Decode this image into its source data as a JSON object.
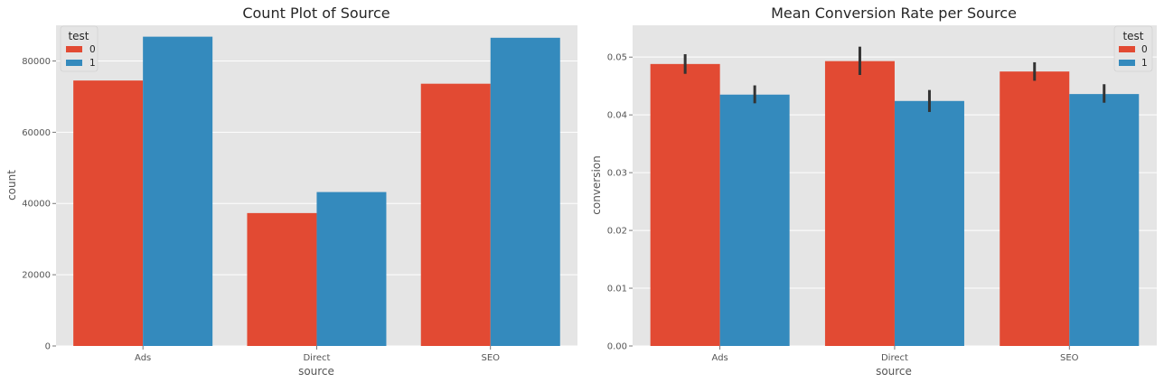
{
  "colors": {
    "series0": "#E24A33",
    "series1": "#348ABD",
    "panel_bg": "#E5E5E5",
    "grid": "#FFFFFF",
    "errbar": "#333333"
  },
  "chart_data": [
    {
      "type": "bar",
      "title": "Count Plot of Source",
      "xlabel": "source",
      "ylabel": "count",
      "categories": [
        "Ads",
        "Direct",
        "SEO"
      ],
      "ylim": [
        0,
        90000
      ],
      "yticks": [
        0,
        20000,
        40000,
        60000,
        80000
      ],
      "grid": true,
      "legend": {
        "title": "test",
        "placement": "top-left",
        "entries": [
          "0",
          "1"
        ]
      },
      "series": [
        {
          "name": "0",
          "values": [
            74500,
            37300,
            73600
          ]
        },
        {
          "name": "1",
          "values": [
            86800,
            43200,
            86500
          ]
        }
      ]
    },
    {
      "type": "bar",
      "title": "Mean Conversion Rate per Source",
      "xlabel": "source",
      "ylabel": "conversion",
      "categories": [
        "Ads",
        "Direct",
        "SEO"
      ],
      "ylim": [
        0,
        0.0555
      ],
      "yticks": [
        "0.00",
        "0.01",
        "0.02",
        "0.03",
        "0.04",
        "0.05"
      ],
      "grid": true,
      "legend": {
        "title": "test",
        "placement": "top-right",
        "entries": [
          "0",
          "1"
        ]
      },
      "series": [
        {
          "name": "0",
          "values": [
            0.0488,
            0.0493,
            0.0475
          ],
          "err_low": [
            0.0471,
            0.0469,
            0.0459
          ],
          "err_high": [
            0.0505,
            0.0518,
            0.0491
          ]
        },
        {
          "name": "1",
          "values": [
            0.0435,
            0.0424,
            0.0436
          ],
          "err_low": [
            0.042,
            0.0405,
            0.0421
          ],
          "err_high": [
            0.0451,
            0.0443,
            0.0453
          ]
        }
      ]
    }
  ]
}
